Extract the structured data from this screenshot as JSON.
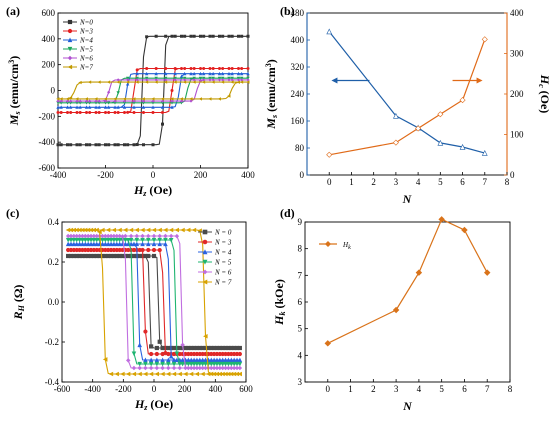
{
  "chart_data": [
    {
      "panel": "(a)",
      "type": "line",
      "xlabel": "Hz (Oe)",
      "ylabel": "Ms (emu/cm3)",
      "xlim": [
        -400,
        400
      ],
      "ylim": [
        -600,
        600
      ],
      "xticks": [
        "-400",
        "-200",
        "0",
        "200",
        "400"
      ],
      "yticks": [
        "-600",
        "-400",
        "-200",
        "0",
        "200",
        "400",
        "600"
      ],
      "legend": "top-left",
      "series": [
        {
          "name": "N=0",
          "color": "#333333",
          "marker": "square",
          "saturation": 420,
          "coercivity": 45
        },
        {
          "name": "N=3",
          "color": "#e32020",
          "marker": "circle",
          "saturation": 170,
          "coercivity": 80
        },
        {
          "name": "N=4",
          "color": "#1f5fd6",
          "marker": "triangle",
          "saturation": 130,
          "coercivity": 110
        },
        {
          "name": "N=5",
          "color": "#1aa55a",
          "marker": "triangle-down",
          "saturation": 95,
          "coercivity": 145
        },
        {
          "name": "N=6",
          "color": "#b04fd1",
          "marker": "diamond",
          "saturation": 82,
          "coercivity": 185
        },
        {
          "name": "N=7",
          "color": "#c29a00",
          "marker": "triangle-left",
          "saturation": 65,
          "coercivity": 330
        }
      ]
    },
    {
      "panel": "(b)",
      "type": "line",
      "xlabel": "N",
      "ylabel": "Ms (emu/cm3)",
      "ylabel_right": "Hc (Oe)",
      "x": [
        0,
        3,
        4,
        5,
        6,
        7
      ],
      "xlim": [
        -1,
        8
      ],
      "ylim": [
        0,
        480
      ],
      "ylim_right": [
        0,
        400
      ],
      "xticks": [
        "0",
        "1",
        "2",
        "3",
        "4",
        "5",
        "6",
        "7",
        "8"
      ],
      "yticks": [
        "0",
        "80",
        "160",
        "240",
        "320",
        "400",
        "480"
      ],
      "yticks_right": [
        "0",
        "100",
        "200",
        "300",
        "400"
      ],
      "series": [
        {
          "name": "Ms",
          "axis": "left",
          "color": "#1f5fa8",
          "values": [
            425,
            175,
            140,
            95,
            83,
            65
          ]
        },
        {
          "name": "Hc",
          "axis": "right",
          "color": "#e06a18",
          "values": [
            50,
            80,
            115,
            150,
            185,
            335
          ]
        }
      ]
    },
    {
      "panel": "(c)",
      "type": "line",
      "xlabel": "Hz (Oe)",
      "ylabel": "RH (Ω)",
      "xlim": [
        -600,
        600
      ],
      "ylim": [
        -0.4,
        0.4
      ],
      "xticks": [
        "-600",
        "-400",
        "-200",
        "0",
        "200",
        "400",
        "600"
      ],
      "yticks": [
        "-0.4",
        "-0.2",
        "0.0",
        "0.2",
        "0.4"
      ],
      "legend": "right",
      "series": [
        {
          "name": "N = 0",
          "color": "#4a4a4a",
          "marker": "square",
          "saturation": 0.23,
          "coercivity": 30
        },
        {
          "name": "N = 3",
          "color": "#e02828",
          "marker": "circle",
          "saturation": 0.26,
          "coercivity": 60
        },
        {
          "name": "N = 4",
          "color": "#2a62e0",
          "marker": "triangle",
          "saturation": 0.29,
          "coercivity": 100
        },
        {
          "name": "N = 5",
          "color": "#1fb570",
          "marker": "triangle-down",
          "saturation": 0.31,
          "coercivity": 140
        },
        {
          "name": "N = 6",
          "color": "#c06ee0",
          "marker": "diamond",
          "saturation": 0.33,
          "coercivity": 180
        },
        {
          "name": "N = 7",
          "color": "#d8a200",
          "marker": "triangle-left",
          "saturation": 0.36,
          "coercivity": 330
        }
      ]
    },
    {
      "panel": "(d)",
      "type": "line",
      "xlabel": "N",
      "ylabel": "Hk (kOe)",
      "x": [
        0,
        3,
        4,
        5,
        6,
        7
      ],
      "xlim": [
        -1,
        8
      ],
      "ylim": [
        3,
        9
      ],
      "xticks": [
        "0",
        "1",
        "2",
        "3",
        "4",
        "5",
        "6",
        "7",
        "8"
      ],
      "yticks": [
        "3",
        "4",
        "5",
        "6",
        "7",
        "8",
        "9"
      ],
      "legend": "top-left",
      "series": [
        {
          "name": "Hk",
          "color": "#d9731a",
          "values": [
            4.45,
            5.7,
            7.1,
            9.1,
            8.7,
            7.1
          ]
        }
      ]
    }
  ]
}
